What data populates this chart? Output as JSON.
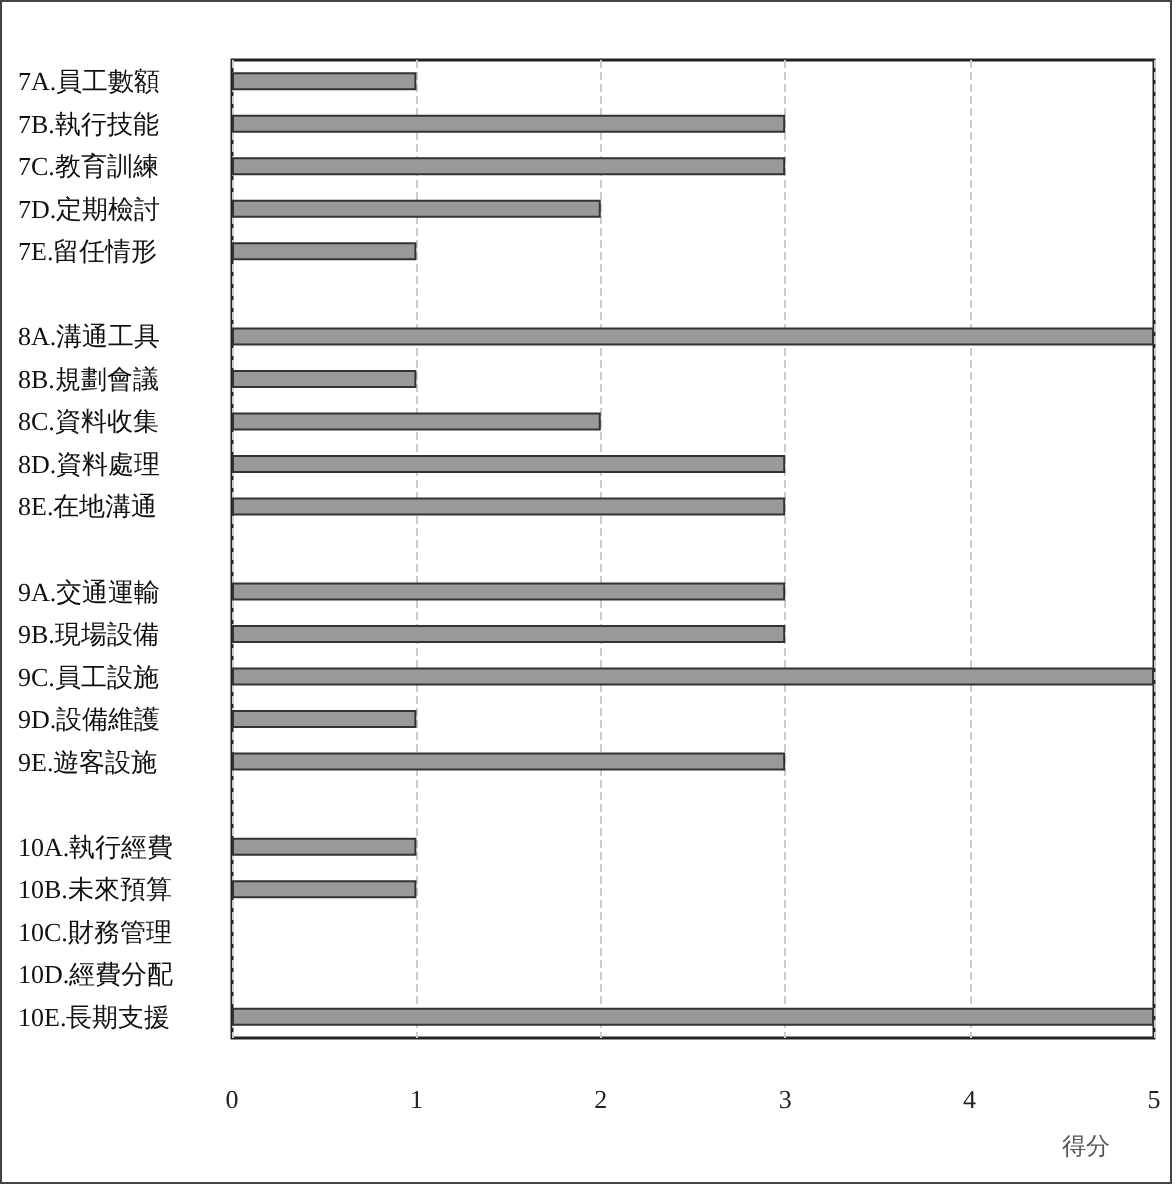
{
  "chart_data": {
    "type": "bar",
    "orientation": "horizontal",
    "categories": [
      "7A.員工數額",
      "7B.執行技能",
      "7C.教育訓練",
      "7D.定期檢討",
      "7E.留任情形",
      null,
      "8A.溝通工具",
      "8B.規劃會議",
      "8C.資料收集",
      "8D.資料處理",
      "8E.在地溝通",
      null,
      "9A.交通運輸",
      "9B.現場設備",
      "9C.員工設施",
      "9D.設備維護",
      "9E.遊客設施",
      null,
      "10A.執行經費",
      "10B.未來預算",
      "10C.財務管理",
      "10D.經費分配",
      "10E.長期支援"
    ],
    "values": [
      1,
      3,
      3,
      2,
      1,
      null,
      5,
      1,
      2,
      3,
      3,
      null,
      3,
      3,
      5,
      1,
      3,
      null,
      1,
      1,
      0,
      0,
      5
    ],
    "color": "#999999",
    "xlim": [
      0,
      5
    ],
    "xticks": [
      0,
      1,
      2,
      3,
      4,
      5
    ],
    "xlabel": "得分",
    "grid": "x"
  }
}
